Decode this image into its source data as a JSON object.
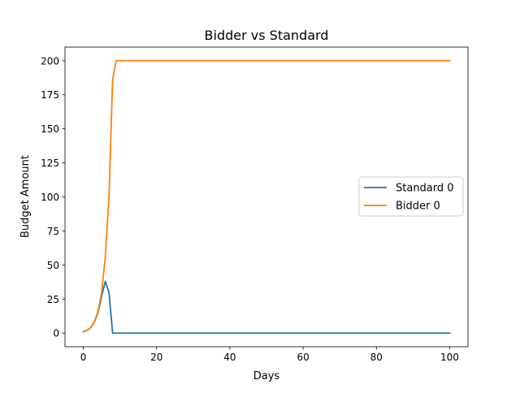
{
  "chart_data": {
    "type": "line",
    "title": "Bidder vs Standard",
    "xlabel": "Days",
    "ylabel": "Budget Amount",
    "xlim": [
      -5,
      105
    ],
    "ylim": [
      -10,
      210
    ],
    "xticks": [
      0,
      20,
      40,
      60,
      80,
      100
    ],
    "yticks": [
      0,
      25,
      50,
      75,
      100,
      125,
      150,
      175,
      200
    ],
    "grid": false,
    "legend": "center-right",
    "series": [
      {
        "name": "Standard 0",
        "color": "#1f77b4",
        "x": [
          0,
          1,
          2,
          3,
          4,
          5,
          6,
          7,
          8,
          9,
          10,
          100
        ],
        "y": [
          1,
          2,
          4,
          8,
          15,
          27,
          38,
          30,
          0,
          0,
          0,
          0
        ]
      },
      {
        "name": "Bidder 0",
        "color": "#ff7f0e",
        "x": [
          0,
          1,
          2,
          3,
          4,
          5,
          6,
          7,
          8,
          9,
          10,
          100
        ],
        "y": [
          1,
          2,
          4,
          8,
          16,
          30,
          56,
          100,
          186,
          200,
          200,
          200
        ]
      }
    ]
  }
}
